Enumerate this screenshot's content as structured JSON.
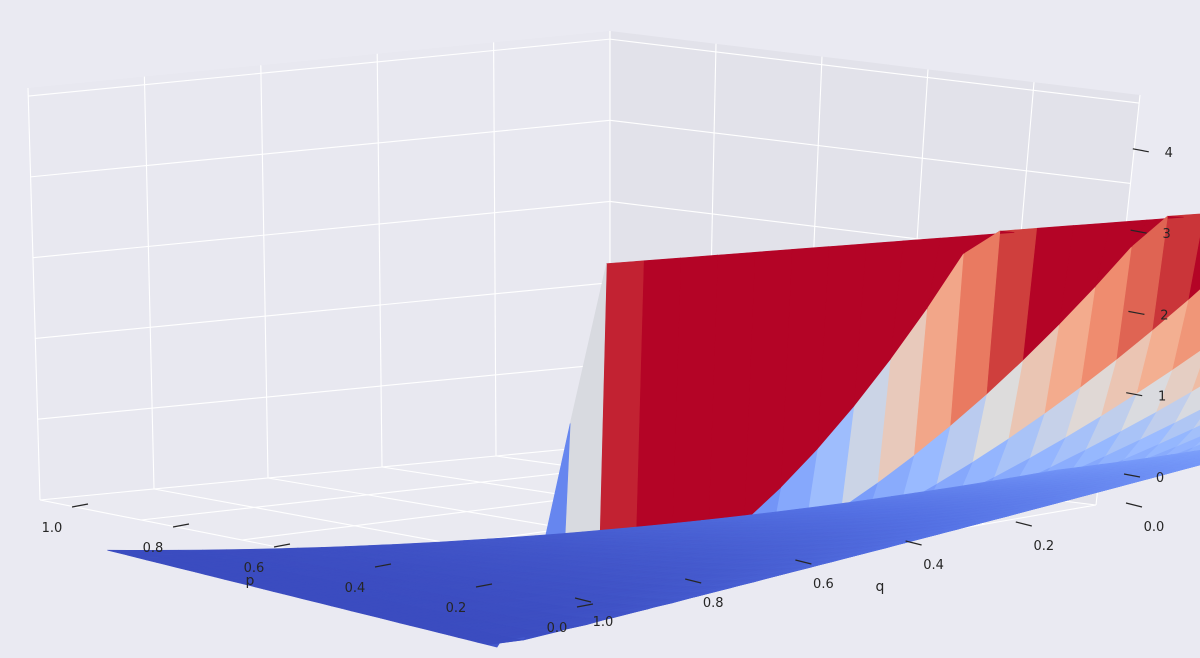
{
  "chart_data": {
    "type": "surface",
    "function": "z = (1 - q)^2 / p",
    "p_range": [
      0.0,
      1.0
    ],
    "q_range": [
      0.0,
      1.0
    ],
    "zlim": [
      0,
      4.3
    ],
    "grid_resolution": 40,
    "colormap": "coolwarm",
    "colors": {
      "low": "#3b4cc0",
      "mid": "#dddddd",
      "high": "#b40426",
      "background": "#eaeaf2"
    },
    "samples": [
      {
        "p": 1.0,
        "q": 0.0,
        "z": 1.0
      },
      {
        "p": 1.0,
        "q": 1.0,
        "z": 0.0
      },
      {
        "p": 0.5,
        "q": 0.0,
        "z": 2.0
      },
      {
        "p": 0.25,
        "q": 0.0,
        "z": 4.0
      },
      {
        "p": 0.25,
        "q": 0.5,
        "z": 1.0
      }
    ],
    "x_axis": {
      "label": "p",
      "ticks": [
        "1.0",
        "0.8",
        "0.6",
        "0.4",
        "0.2",
        "0.0"
      ],
      "tick_values": [
        1.0,
        0.8,
        0.6,
        0.4,
        0.2,
        0.0
      ]
    },
    "y_axis": {
      "label": "q",
      "ticks": [
        "1.0",
        "0.8",
        "0.6",
        "0.4",
        "0.2",
        "0.0"
      ],
      "tick_values": [
        1.0,
        0.8,
        0.6,
        0.4,
        0.2,
        0.0
      ]
    },
    "z_axis": {
      "label": "",
      "ticks": [
        "0",
        "1",
        "2",
        "3",
        "4"
      ],
      "tick_values": [
        0,
        1,
        2,
        3,
        4
      ]
    },
    "grid": true,
    "legend": "none"
  }
}
